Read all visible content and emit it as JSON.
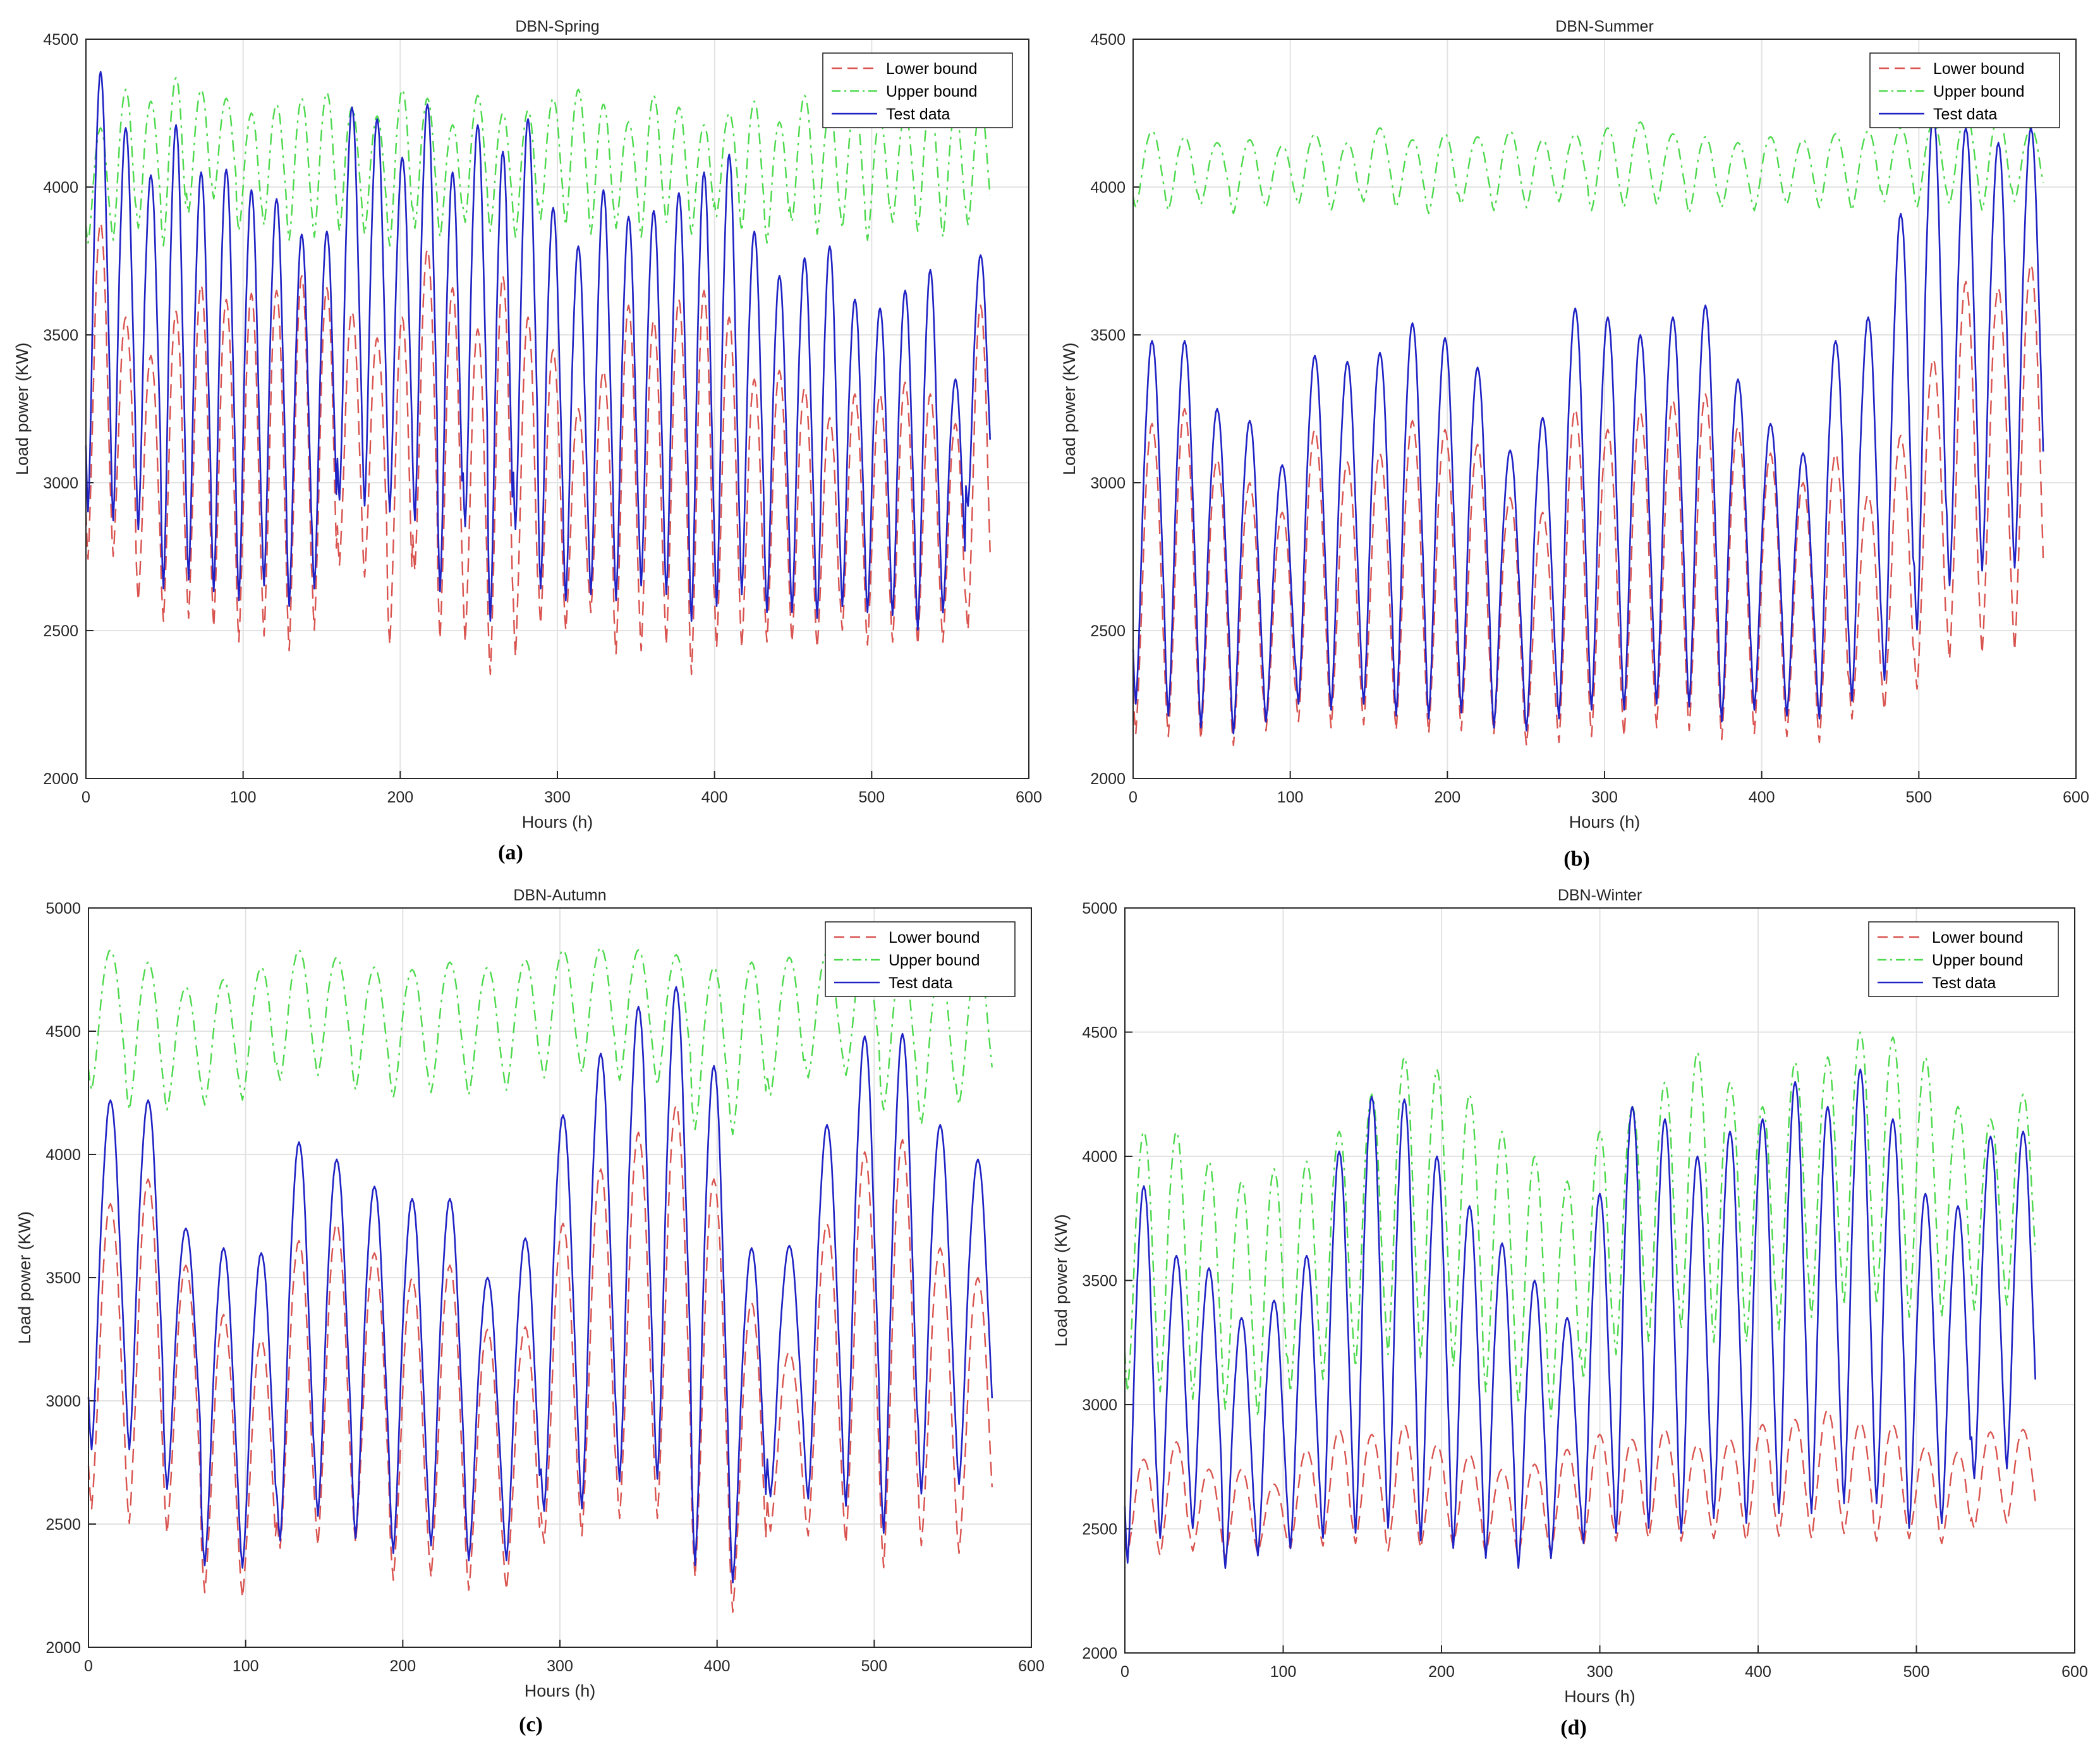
{
  "chart_data": [
    {
      "id": "a",
      "type": "line",
      "title": "DBN-Spring",
      "caption": "(a)",
      "xlabel": "Hours (h)",
      "ylabel": "Load power (KW)",
      "xlim": [
        0,
        600
      ],
      "ylim": [
        2000,
        4500
      ],
      "xticks": [
        "0",
        "100",
        "200",
        "300",
        "400",
        "500",
        "600"
      ],
      "yticks": [
        "2000",
        "2500",
        "3000",
        "3500",
        "4000",
        "4500"
      ],
      "grid": true,
      "legend": "top-right",
      "x_end": 576,
      "series": [
        {
          "name": "Lower bound",
          "color": "#d9534f",
          "dash": "dashed",
          "peaks": [
            3880,
            3560,
            3430,
            3580,
            3670,
            3620,
            3640,
            3650,
            3700,
            3660,
            3580,
            3490,
            3560,
            3790,
            3660,
            3520,
            3700,
            3560,
            3450,
            3250,
            3380,
            3600,
            3550,
            3620,
            3650,
            3560,
            3350,
            3380,
            3320,
            3220,
            3300,
            3300,
            3340,
            3300,
            3200,
            3600
          ],
          "troughs": [
            2740,
            2750,
            2600,
            2530,
            2540,
            2510,
            2460,
            2480,
            2430,
            2500,
            2720,
            2680,
            2450,
            2700,
            2470,
            2460,
            2350,
            2410,
            2520,
            2500,
            2560,
            2420,
            2430,
            2450,
            2350,
            2440,
            2440,
            2460,
            2460,
            2440,
            2500,
            2450,
            2460,
            2450,
            2460,
            2500
          ]
        },
        {
          "name": "Upper bound",
          "color": "#4cd94c",
          "dash": "dashdot",
          "peaks": [
            4200,
            4330,
            4290,
            4370,
            4330,
            4300,
            4250,
            4280,
            4300,
            4320,
            4270,
            4240,
            4330,
            4300,
            4210,
            4310,
            4250,
            4260,
            4300,
            4330,
            4280,
            4220,
            4310,
            4270,
            4210,
            4250,
            4290,
            4220,
            4310,
            4260,
            4280,
            4230,
            4250,
            4280,
            4260,
            4270
          ],
          "troughs": [
            3810,
            3820,
            3860,
            3800,
            3910,
            3960,
            3850,
            3870,
            3820,
            3830,
            3850,
            3840,
            3800,
            3860,
            3830,
            3880,
            3850,
            3830,
            3890,
            3870,
            3840,
            3860,
            3830,
            3880,
            3840,
            3900,
            3850,
            3810,
            3880,
            3840,
            3860,
            3820,
            3880,
            3850,
            3830,
            3870
          ]
        },
        {
          "name": "Test data",
          "color": "#1f22c4",
          "dash": "solid",
          "peaks": [
            4390,
            4200,
            4040,
            4210,
            4050,
            4060,
            3990,
            3960,
            3840,
            3850,
            4270,
            4230,
            4100,
            4280,
            4050,
            4210,
            4120,
            4230,
            3930,
            3800,
            3990,
            3900,
            3920,
            3980,
            4050,
            4110,
            3850,
            3700,
            3760,
            3800,
            3620,
            3590,
            3650,
            3720,
            3350,
            3770
          ],
          "troughs": [
            2900,
            2870,
            2840,
            2640,
            2670,
            2630,
            2600,
            2650,
            2580,
            2640,
            2940,
            2920,
            2900,
            2870,
            2630,
            2850,
            2530,
            2840,
            2640,
            2600,
            2620,
            2600,
            2650,
            2620,
            2530,
            2580,
            2620,
            2560,
            2560,
            2540,
            2580,
            2560,
            2550,
            2500,
            2560,
            2920
          ]
        }
      ]
    },
    {
      "id": "b",
      "type": "line",
      "title": "DBN-Summer",
      "caption": "(b)",
      "xlabel": "Hours (h)",
      "ylabel": "Load power (KW)",
      "xlim": [
        0,
        600
      ],
      "ylim": [
        2000,
        4500
      ],
      "xticks": [
        "0",
        "100",
        "200",
        "300",
        "400",
        "500",
        "600"
      ],
      "yticks": [
        "2000",
        "2500",
        "3000",
        "3500",
        "4000",
        "4500"
      ],
      "grid": true,
      "legend": "top-right",
      "x_end": 580,
      "series": [
        {
          "name": "Lower bound",
          "color": "#d9534f",
          "dash": "dashed",
          "peaks": [
            3200,
            3250,
            3080,
            3000,
            2900,
            3180,
            3070,
            3100,
            3210,
            3180,
            3130,
            2950,
            2900,
            3250,
            3180,
            3240,
            3280,
            3300,
            3190,
            3100,
            3000,
            3100,
            2960,
            3160,
            3420,
            3680,
            3660,
            3740
          ],
          "troughs": [
            2150,
            2140,
            2130,
            2110,
            2160,
            2190,
            2170,
            2180,
            2160,
            2150,
            2160,
            2150,
            2110,
            2120,
            2140,
            2140,
            2170,
            2160,
            2130,
            2150,
            2140,
            2120,
            2200,
            2230,
            2300,
            2400,
            2420,
            2430
          ]
        },
        {
          "name": "Upper bound",
          "color": "#4cd94c",
          "dash": "dashdot",
          "peaks": [
            4190,
            4170,
            4150,
            4160,
            4140,
            4180,
            4150,
            4200,
            4160,
            4180,
            4170,
            4190,
            4160,
            4180,
            4200,
            4220,
            4180,
            4170,
            4150,
            4170,
            4160,
            4180,
            4190,
            4200,
            4220,
            4250,
            4240,
            4200
          ],
          "troughs": [
            3930,
            3920,
            3940,
            3910,
            3930,
            3940,
            3920,
            3950,
            3930,
            3910,
            3940,
            3920,
            3930,
            3950,
            3920,
            3930,
            3940,
            3910,
            3930,
            3920,
            3940,
            3930,
            3920,
            3950,
            3930,
            3940,
            3920,
            3950
          ]
        },
        {
          "name": "Test data",
          "color": "#1f22c4",
          "dash": "solid",
          "peaks": [
            3480,
            3480,
            3250,
            3210,
            3060,
            3430,
            3410,
            3440,
            3540,
            3490,
            3390,
            3110,
            3220,
            3590,
            3560,
            3500,
            3560,
            3600,
            3350,
            3200,
            3100,
            3480,
            3560,
            3910,
            4250,
            4200,
            4150,
            4200
          ],
          "troughs": [
            2250,
            2210,
            2170,
            2150,
            2190,
            2250,
            2230,
            2250,
            2210,
            2200,
            2220,
            2170,
            2160,
            2200,
            2230,
            2230,
            2250,
            2240,
            2190,
            2230,
            2210,
            2200,
            2260,
            2330,
            2500,
            2650,
            2700,
            2710
          ]
        }
      ]
    },
    {
      "id": "c",
      "type": "line",
      "title": "DBN-Autumn",
      "caption": "(c)",
      "xlabel": "Hours (h)",
      "ylabel": "Load power (KW)",
      "xlim": [
        0,
        600
      ],
      "ylim": [
        2000,
        5000
      ],
      "xticks": [
        "0",
        "100",
        "200",
        "300",
        "400",
        "500",
        "600"
      ],
      "yticks": [
        "2000",
        "2500",
        "3000",
        "3500",
        "4000",
        "4500",
        "5000"
      ],
      "grid": true,
      "legend": "top-right",
      "x_end": 576,
      "series": [
        {
          "name": "Lower bound",
          "color": "#d9534f",
          "dash": "dashed",
          "peaks": [
            3800,
            3900,
            3550,
            3350,
            3250,
            3650,
            3720,
            3600,
            3500,
            3550,
            3290,
            3300,
            3720,
            3940,
            4090,
            4200,
            3900,
            3400,
            3200,
            3720,
            4010,
            4060,
            3620,
            3500
          ],
          "troughs": [
            2560,
            2500,
            2460,
            2220,
            2200,
            2400,
            2410,
            2420,
            2270,
            2280,
            2230,
            2230,
            2420,
            2450,
            2520,
            2520,
            2280,
            2140,
            2470,
            2450,
            2420,
            2320,
            2410,
            2380
          ]
        },
        {
          "name": "Upper bound",
          "color": "#4cd94c",
          "dash": "dashdot",
          "peaks": [
            4830,
            4780,
            4680,
            4710,
            4760,
            4830,
            4800,
            4760,
            4750,
            4780,
            4760,
            4790,
            4830,
            4840,
            4830,
            4810,
            4760,
            4780,
            4800,
            4820,
            4820,
            4790,
            4760,
            4800
          ],
          "troughs": [
            4260,
            4180,
            4180,
            4200,
            4220,
            4300,
            4320,
            4260,
            4230,
            4250,
            4240,
            4260,
            4310,
            4330,
            4300,
            4280,
            4100,
            4080,
            4240,
            4310,
            4320,
            4180,
            4120,
            4200
          ]
        },
        {
          "name": "Test data",
          "color": "#1f22c4",
          "dash": "solid",
          "peaks": [
            4220,
            4220,
            3700,
            3620,
            3600,
            4050,
            3980,
            3870,
            3820,
            3820,
            3500,
            3660,
            4160,
            4410,
            4600,
            4680,
            4360,
            3620,
            3630,
            4120,
            4480,
            4490,
            4120,
            3980
          ],
          "troughs": [
            2800,
            2800,
            2640,
            2330,
            2320,
            2430,
            2530,
            2440,
            2380,
            2410,
            2350,
            2350,
            2550,
            2560,
            2670,
            2680,
            2330,
            2260,
            2610,
            2600,
            2570,
            2460,
            2620,
            2660
          ]
        }
      ]
    },
    {
      "id": "d",
      "type": "line",
      "title": "DBN-Winter",
      "caption": "(d)",
      "xlabel": "Hours (h)",
      "ylabel": "Load power (KW)",
      "xlim": [
        0,
        600
      ],
      "ylim": [
        2000,
        5000
      ],
      "xticks": [
        "0",
        "100",
        "200",
        "300",
        "400",
        "500",
        "600"
      ],
      "yticks": [
        "2000",
        "2500",
        "3000",
        "3500",
        "4000",
        "4500",
        "5000"
      ],
      "grid": true,
      "legend": "top-right",
      "x_end": 576,
      "series": [
        {
          "name": "Lower bound",
          "color": "#d9534f",
          "dash": "dashed",
          "peaks": [
            2780,
            2850,
            2740,
            2740,
            2680,
            2820,
            2900,
            2880,
            2920,
            2840,
            2800,
            2740,
            2760,
            2820,
            2880,
            2860,
            2900,
            2840,
            2860,
            2920,
            2940,
            2980,
            2930,
            2920,
            2830,
            2810,
            2890,
            2900
          ],
          "troughs": [
            2400,
            2390,
            2410,
            2380,
            2400,
            2420,
            2430,
            2440,
            2410,
            2420,
            2430,
            2400,
            2390,
            2400,
            2430,
            2450,
            2460,
            2450,
            2460,
            2450,
            2470,
            2460,
            2480,
            2450,
            2460,
            2440,
            2500,
            2520
          ]
        },
        {
          "name": "Upper bound",
          "color": "#4cd94c",
          "dash": "dashdot",
          "peaks": [
            4100,
            4100,
            3980,
            3900,
            3950,
            3980,
            4100,
            4250,
            4400,
            4350,
            4250,
            4100,
            4000,
            3900,
            4100,
            4200,
            4300,
            4420,
            4300,
            4200,
            4380,
            4400,
            4500,
            4480,
            4400,
            4200,
            4150,
            4250
          ],
          "troughs": [
            3050,
            3050,
            3020,
            2980,
            2950,
            3050,
            3100,
            3150,
            3200,
            3180,
            3150,
            3050,
            3000,
            2950,
            3100,
            3200,
            3250,
            3300,
            3250,
            3250,
            3300,
            3350,
            3400,
            3400,
            3350,
            3350,
            3380,
            3400
          ]
        },
        {
          "name": "Test data",
          "color": "#1f22c4",
          "dash": "solid",
          "peaks": [
            3880,
            3600,
            3550,
            3350,
            3420,
            3600,
            4020,
            4240,
            4230,
            4000,
            3800,
            3650,
            3500,
            3350,
            3850,
            4200,
            4150,
            4000,
            4100,
            4150,
            4300,
            4200,
            4350,
            4150,
            3850,
            3800,
            4080,
            4100
          ],
          "troughs": [
            2360,
            2460,
            2500,
            2340,
            2390,
            2420,
            2460,
            2480,
            2500,
            2450,
            2420,
            2380,
            2340,
            2380,
            2440,
            2480,
            2500,
            2480,
            2540,
            2520,
            2560,
            2560,
            2600,
            2600,
            2500,
            2520,
            2700,
            2740
          ]
        }
      ]
    }
  ]
}
